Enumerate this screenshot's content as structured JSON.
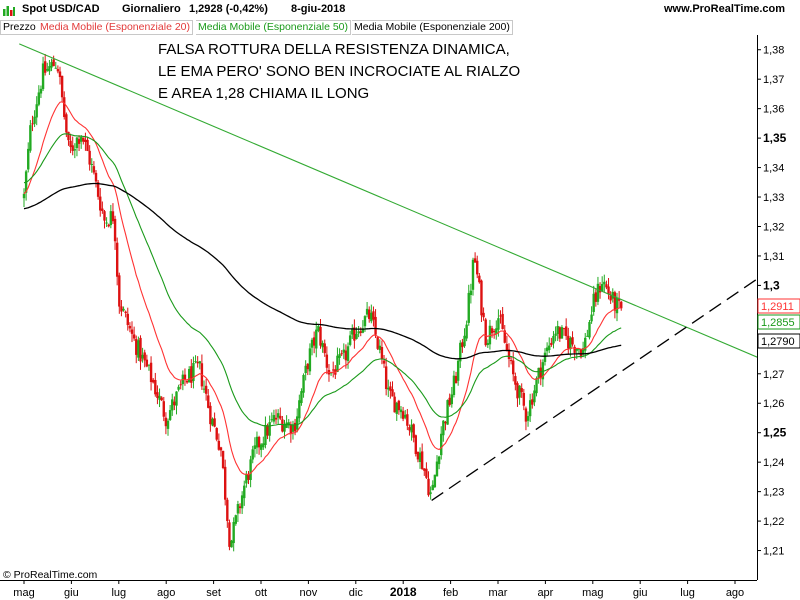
{
  "header": {
    "instrument": "Spot USD/CAD",
    "timeframe": "Giornaliero",
    "last_quote": "1,2928 (-0,42%)",
    "date": "8-giu-2018",
    "site": "www.ProRealTime.com"
  },
  "legend": {
    "price": "Prezzo",
    "ema20": "Media Mobile (Esponenziale 20)",
    "ema50": "Media Mobile (Esponenziale 50)",
    "ema200": "Media Mobile (Esponenziale 200)"
  },
  "annotation": {
    "line1": "FALSA ROTTURA DELLA RESISTENZA DINAMICA,",
    "line2": "LE EMA PERO' SONO BEN INCROCIATE AL RIALZO",
    "line3": "E AREA 1,28 CHIAMA IL LONG"
  },
  "footer": {
    "copyright": "© ProRealTime.com"
  },
  "colors": {
    "up": "#22aa22",
    "down": "#dd1111",
    "ema20": "#ff3333",
    "ema50": "#1a9a1a",
    "ema200": "#000000",
    "resistance": "#33aa33",
    "support": "#000000"
  },
  "chart_data": {
    "type": "candlestick",
    "ylim": [
      1.2,
      1.385
    ],
    "y_ticks": [
      {
        "value": 1.38,
        "label": "1,38"
      },
      {
        "value": 1.37,
        "label": "1,37"
      },
      {
        "value": 1.36,
        "label": "1,36"
      },
      {
        "value": 1.35,
        "label": "1,35",
        "major": true
      },
      {
        "value": 1.34,
        "label": "1,34"
      },
      {
        "value": 1.33,
        "label": "1,33"
      },
      {
        "value": 1.32,
        "label": "1,32"
      },
      {
        "value": 1.31,
        "label": "1,31"
      },
      {
        "value": 1.3,
        "label": "1,3",
        "major": true
      },
      {
        "value": 1.27,
        "label": "1,27"
      },
      {
        "value": 1.26,
        "label": "1,26"
      },
      {
        "value": 1.25,
        "label": "1,25",
        "major": true
      },
      {
        "value": 1.24,
        "label": "1,24"
      },
      {
        "value": 1.23,
        "label": "1,23"
      },
      {
        "value": 1.22,
        "label": "1,22"
      },
      {
        "value": 1.21,
        "label": "1,21"
      }
    ],
    "x_ticks": [
      {
        "month": 0,
        "label": "mag"
      },
      {
        "month": 1,
        "label": "giu"
      },
      {
        "month": 2,
        "label": "lug"
      },
      {
        "month": 3,
        "label": "ago"
      },
      {
        "month": 4,
        "label": "set"
      },
      {
        "month": 5,
        "label": "ott"
      },
      {
        "month": 6,
        "label": "nov"
      },
      {
        "month": 7,
        "label": "dic"
      },
      {
        "month": 8,
        "label": "2018",
        "year": true
      },
      {
        "month": 9,
        "label": "feb"
      },
      {
        "month": 10,
        "label": "mar"
      },
      {
        "month": 11,
        "label": "apr"
      },
      {
        "month": 12,
        "label": "mag"
      },
      {
        "month": 13,
        "label": "giu"
      },
      {
        "month": 14,
        "label": "lug"
      },
      {
        "month": 15,
        "label": "ago"
      }
    ],
    "price_path": [
      [
        0.0,
        1.33
      ],
      [
        0.15,
        1.355
      ],
      [
        0.4,
        1.372
      ],
      [
        0.7,
        1.376
      ],
      [
        0.95,
        1.345
      ],
      [
        1.2,
        1.352
      ],
      [
        1.4,
        1.342
      ],
      [
        1.7,
        1.322
      ],
      [
        1.9,
        1.324
      ],
      [
        2.0,
        1.295
      ],
      [
        2.3,
        1.282
      ],
      [
        2.7,
        1.268
      ],
      [
        3.0,
        1.255
      ],
      [
        3.4,
        1.268
      ],
      [
        3.7,
        1.272
      ],
      [
        3.95,
        1.255
      ],
      [
        4.15,
        1.245
      ],
      [
        4.35,
        1.212
      ],
      [
        4.65,
        1.232
      ],
      [
        4.9,
        1.245
      ],
      [
        5.3,
        1.255
      ],
      [
        5.7,
        1.252
      ],
      [
        6.0,
        1.275
      ],
      [
        6.2,
        1.285
      ],
      [
        6.45,
        1.27
      ],
      [
        6.75,
        1.275
      ],
      [
        7.0,
        1.285
      ],
      [
        7.3,
        1.29
      ],
      [
        7.5,
        1.278
      ],
      [
        7.7,
        1.262
      ],
      [
        8.0,
        1.258
      ],
      [
        8.4,
        1.24
      ],
      [
        8.6,
        1.228
      ],
      [
        8.8,
        1.25
      ],
      [
        9.1,
        1.268
      ],
      [
        9.35,
        1.29
      ],
      [
        9.5,
        1.31
      ],
      [
        9.75,
        1.282
      ],
      [
        10.0,
        1.29
      ],
      [
        10.3,
        1.27
      ],
      [
        10.6,
        1.256
      ],
      [
        10.9,
        1.272
      ],
      [
        11.2,
        1.285
      ],
      [
        11.5,
        1.281
      ],
      [
        11.8,
        1.278
      ],
      [
        12.0,
        1.293
      ],
      [
        12.2,
        1.302
      ],
      [
        12.4,
        1.295
      ],
      [
        12.6,
        1.291
      ]
    ],
    "series": [
      {
        "name": "Media Mobile (Esponenziale 20)",
        "key": "ema20",
        "last_value": 1.2911,
        "label": "1,2911",
        "period": 20
      },
      {
        "name": "Media Mobile (Esponenziale 50)",
        "key": "ema50",
        "last_value": 1.2855,
        "label": "1,2855",
        "period": 50
      },
      {
        "name": "Media Mobile (Esponenziale 200)",
        "key": "ema200",
        "last_value": 1.279,
        "label": "1,2790",
        "period": 200
      }
    ],
    "trendlines": [
      {
        "name": "resistance",
        "style": "solid",
        "from": [
          -0.1,
          1.382
        ],
        "to": [
          16.0,
          1.272
        ]
      },
      {
        "name": "support",
        "style": "dashed",
        "from": [
          8.6,
          1.227
        ],
        "to": [
          16.0,
          1.308
        ]
      }
    ]
  }
}
